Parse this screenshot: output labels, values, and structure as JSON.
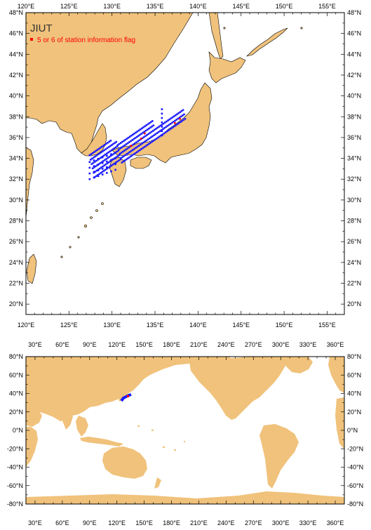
{
  "top_map": {
    "title": "JIUT",
    "legend_label": "5 or 6 of station information flag",
    "legend_color": "#ff0000",
    "station_color": "#1a1aff",
    "land_color": "#f0c27b",
    "lon_labels": [
      "120°E",
      "125°E",
      "130°E",
      "135°E",
      "140°E",
      "145°E",
      "150°E",
      "155°E"
    ],
    "lat_labels": [
      "48°N",
      "46°N",
      "44°N",
      "42°N",
      "40°N",
      "38°N",
      "36°N",
      "34°N",
      "32°N",
      "30°N",
      "28°N",
      "26°N",
      "24°N",
      "22°N",
      "20°N"
    ]
  },
  "bottom_map": {
    "lon_labels": [
      "30°E",
      "60°E",
      "90°E",
      "120°E",
      "150°E",
      "180°E",
      "210°E",
      "240°E",
      "270°E",
      "300°E",
      "330°E",
      "360°E"
    ],
    "lat_labels": [
      "80°N",
      "60°N",
      "40°N",
      "20°N",
      "0°N",
      "-20°N",
      "-40°N",
      "-60°N",
      "-80°N"
    ]
  }
}
